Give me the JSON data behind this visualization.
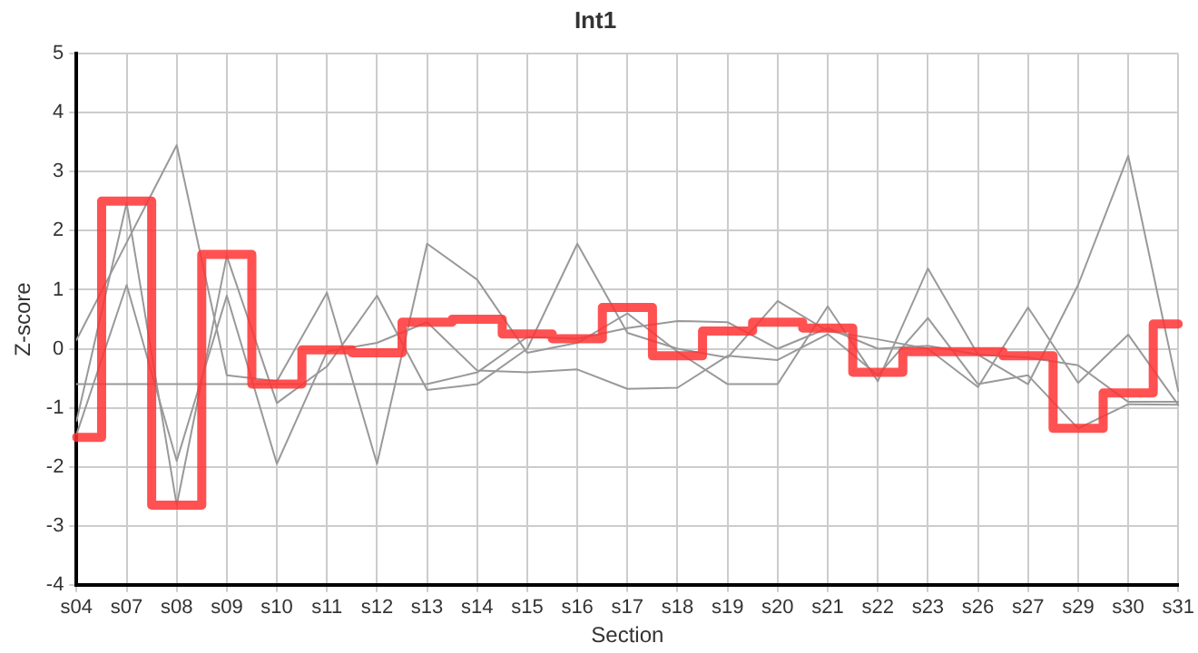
{
  "chart_data": {
    "type": "line",
    "title": "Int1",
    "xlabel": "Section",
    "ylabel": "Z-score",
    "categories": [
      "s04",
      "s07",
      "s08",
      "s09",
      "s10",
      "s11",
      "s12",
      "s13",
      "s14",
      "s15",
      "s16",
      "s17",
      "s18",
      "s19",
      "s20",
      "s21",
      "s22",
      "s23",
      "s26",
      "s27",
      "s29",
      "s30",
      "s31"
    ],
    "series": [
      {
        "color": "#999999",
        "values": [
          0.15,
          1.8,
          3.45,
          -0.45,
          -0.55,
          0.95,
          -1.95,
          1.78,
          1.17,
          -0.07,
          0.1,
          0.6,
          -0.05,
          -0.6,
          -0.6,
          0.72,
          -0.55,
          1.36,
          -0.1,
          -0.6,
          1.08,
          3.27,
          -0.72
        ]
      },
      {
        "color": "#999999",
        "values": [
          -1.22,
          2.47,
          -2.65,
          1.57,
          -0.92,
          -0.3,
          0.9,
          -0.7,
          -0.6,
          0.0,
          1.78,
          0.27,
          0.0,
          -0.15,
          0.81,
          0.3,
          0.16,
          0.0,
          -0.65,
          0.7,
          -0.58,
          0.24,
          -0.95
        ]
      },
      {
        "color": "#999999",
        "values": [
          -1.45,
          1.08,
          -1.9,
          0.9,
          -1.95,
          -0.05,
          0.1,
          0.45,
          -0.37,
          -0.4,
          -0.35,
          -0.68,
          -0.66,
          -0.12,
          -0.19,
          0.25,
          -0.45,
          0.52,
          -0.6,
          -0.45,
          -1.35,
          -0.94,
          -0.95
        ]
      },
      {
        "color": "#999999",
        "values": [
          -0.6,
          -0.6,
          -0.6,
          -0.6,
          -0.6,
          -0.6,
          -0.6,
          -0.6,
          -0.4,
          0.2,
          0.17,
          0.35,
          0.47,
          0.45,
          0.0,
          0.35,
          0.0,
          0.05,
          -0.1,
          -0.15,
          -0.28,
          -0.9,
          -0.9
        ]
      },
      {
        "type": "step",
        "color": "#ff3333",
        "values": [
          -1.5,
          2.5,
          -2.65,
          1.6,
          -0.6,
          -0.02,
          -0.07,
          0.45,
          0.5,
          0.25,
          0.17,
          0.7,
          -0.12,
          0.3,
          0.45,
          0.35,
          -0.4,
          -0.05,
          -0.05,
          -0.12,
          -1.35,
          -0.75,
          0.42
        ]
      }
    ],
    "ylim": [
      -4,
      5
    ],
    "yticks": [
      -4,
      -3,
      -2,
      -1,
      0,
      1,
      2,
      3,
      4,
      5
    ],
    "grid": true,
    "legend": false,
    "marker": "none",
    "line_style": "solid"
  }
}
